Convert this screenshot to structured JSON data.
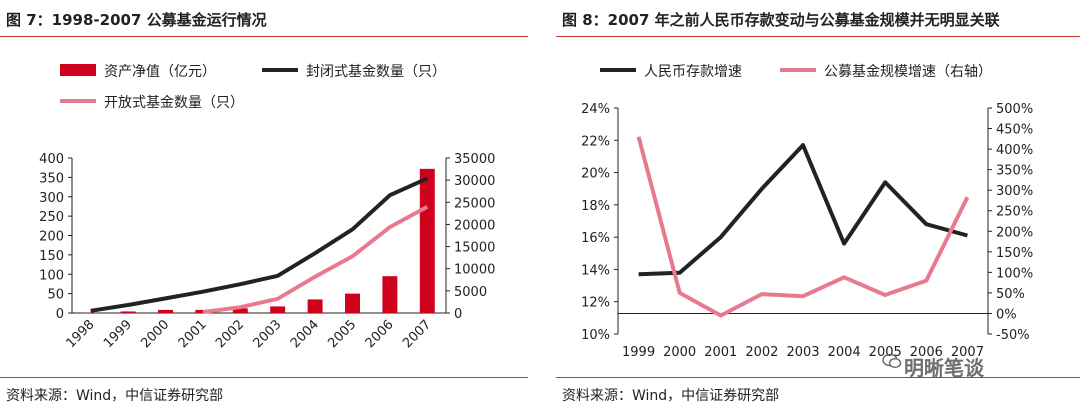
{
  "left": {
    "figure_title": "图 7：1998-2007 公募基金运行情况",
    "source": "资料来源：Wind，中信证券研究部"
  },
  "right": {
    "figure_title": "图 8：2007 年之前人民币存款变动与公募基金规模并无明显关联",
    "source": "资料来源：Wind，中信证券研究部",
    "watermark": "明晰笔谈",
    "watermark_icon": "wechat-icon"
  },
  "colors": {
    "accent_red": "#d0021b",
    "black": "#222222",
    "pink": "#e87a90",
    "rule": "#c0392b"
  },
  "chart_data": [
    {
      "type": "bar+line",
      "categories": [
        "1998",
        "1999",
        "2000",
        "2001",
        "2002",
        "2003",
        "2004",
        "2005",
        "2006",
        "2007"
      ],
      "series": [
        {
          "name": "资产净值（亿元）",
          "kind": "bar",
          "axis": "left",
          "color": "#d0021b",
          "values": [
            1,
            4,
            8,
            8,
            12,
            17,
            35,
            50,
            95,
            372
          ]
        },
        {
          "name": "封闭式基金数量（只）",
          "kind": "line",
          "axis": "right",
          "color": "#222222",
          "values": [
            500,
            1800,
            3300,
            4800,
            6500,
            8400,
            13500,
            18900,
            26600,
            30400
          ]
        },
        {
          "name": "开放式基金数量（只）",
          "kind": "line",
          "axis": "right",
          "color": "#e87a90",
          "values": [
            null,
            null,
            null,
            200,
            1300,
            3200,
            8200,
            12800,
            19400,
            24000
          ]
        }
      ],
      "y_left": {
        "min": 0,
        "max": 400,
        "ticks": [
          "0",
          "50",
          "100",
          "150",
          "200",
          "250",
          "300",
          "350",
          "400"
        ]
      },
      "y_right": {
        "min": 0,
        "max": 35000,
        "ticks": [
          "0",
          "5000",
          "10000",
          "15000",
          "20000",
          "25000",
          "30000",
          "35000"
        ]
      },
      "legend": "top",
      "grid": false
    },
    {
      "type": "line",
      "categories": [
        "1999",
        "2000",
        "2001",
        "2002",
        "2003",
        "2004",
        "2005",
        "2006",
        "2007"
      ],
      "series": [
        {
          "name": "人民币存款增速",
          "axis": "left",
          "color": "#222222",
          "values": [
            13.7,
            13.8,
            16.0,
            19.0,
            21.7,
            15.6,
            19.4,
            16.8,
            16.1
          ]
        },
        {
          "name": "公募基金规模增速（右轴）",
          "axis": "right",
          "color": "#e87a90",
          "values": [
            430,
            50,
            -5,
            47,
            42,
            88,
            45,
            80,
            283
          ]
        }
      ],
      "y_left": {
        "min": 10,
        "max": 24,
        "ticks": [
          "10%",
          "12%",
          "14%",
          "16%",
          "18%",
          "20%",
          "22%",
          "24%"
        ]
      },
      "y_right": {
        "min": -50,
        "max": 500,
        "ticks": [
          "-50%",
          "0%",
          "50%",
          "100%",
          "150%",
          "200%",
          "250%",
          "300%",
          "350%",
          "400%",
          "450%",
          "500%"
        ]
      },
      "legend": "top",
      "grid": false
    }
  ]
}
